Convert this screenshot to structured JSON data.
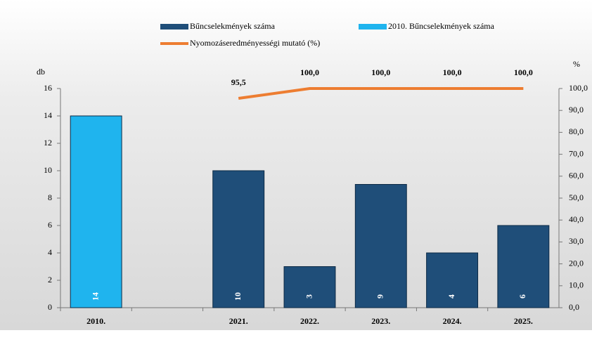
{
  "chart_data": {
    "type": "bar",
    "categories": [
      "2010.",
      null,
      "2021.",
      "2022.",
      "2023.",
      "2024.",
      "2025."
    ],
    "series": [
      {
        "name": "Bűncselekmények száma",
        "color": "#1f4e79",
        "values": [
          null,
          null,
          10,
          3,
          9,
          4,
          6
        ]
      },
      {
        "name": "2010. Bűncselekmények száma",
        "color": "#1fb4ee",
        "values": [
          14,
          null,
          null,
          null,
          null,
          null,
          null
        ]
      },
      {
        "name": "Nyomozáseredményességi mutató (%)",
        "color": "#ed7d31",
        "type": "line",
        "axis": "y2",
        "values": [
          null,
          null,
          95.5,
          100,
          100,
          100,
          100
        ],
        "value_labels": [
          null,
          null,
          "95,5",
          "100,0",
          "100,0",
          "100,0",
          "100,0"
        ]
      }
    ],
    "ylabel": "db",
    "y2label": "%",
    "ylim": [
      0,
      16
    ],
    "yticks": [
      0,
      2,
      4,
      6,
      8,
      10,
      12,
      14,
      16
    ],
    "y2lim": [
      0,
      100
    ],
    "y2ticks": [
      {
        "value": 0,
        "label": "0,0"
      },
      {
        "value": 10,
        "label": "10,0"
      },
      {
        "value": 20,
        "label": "20,0"
      },
      {
        "value": 30,
        "label": "30,0"
      },
      {
        "value": 40,
        "label": "40,0"
      },
      {
        "value": 50,
        "label": "50,0"
      },
      {
        "value": 60,
        "label": "60,0"
      },
      {
        "value": 70,
        "label": "70,0"
      },
      {
        "value": 80,
        "label": "80,0"
      },
      {
        "value": 90,
        "label": "90,0"
      },
      {
        "value": 100,
        "label": "100,0"
      }
    ]
  }
}
